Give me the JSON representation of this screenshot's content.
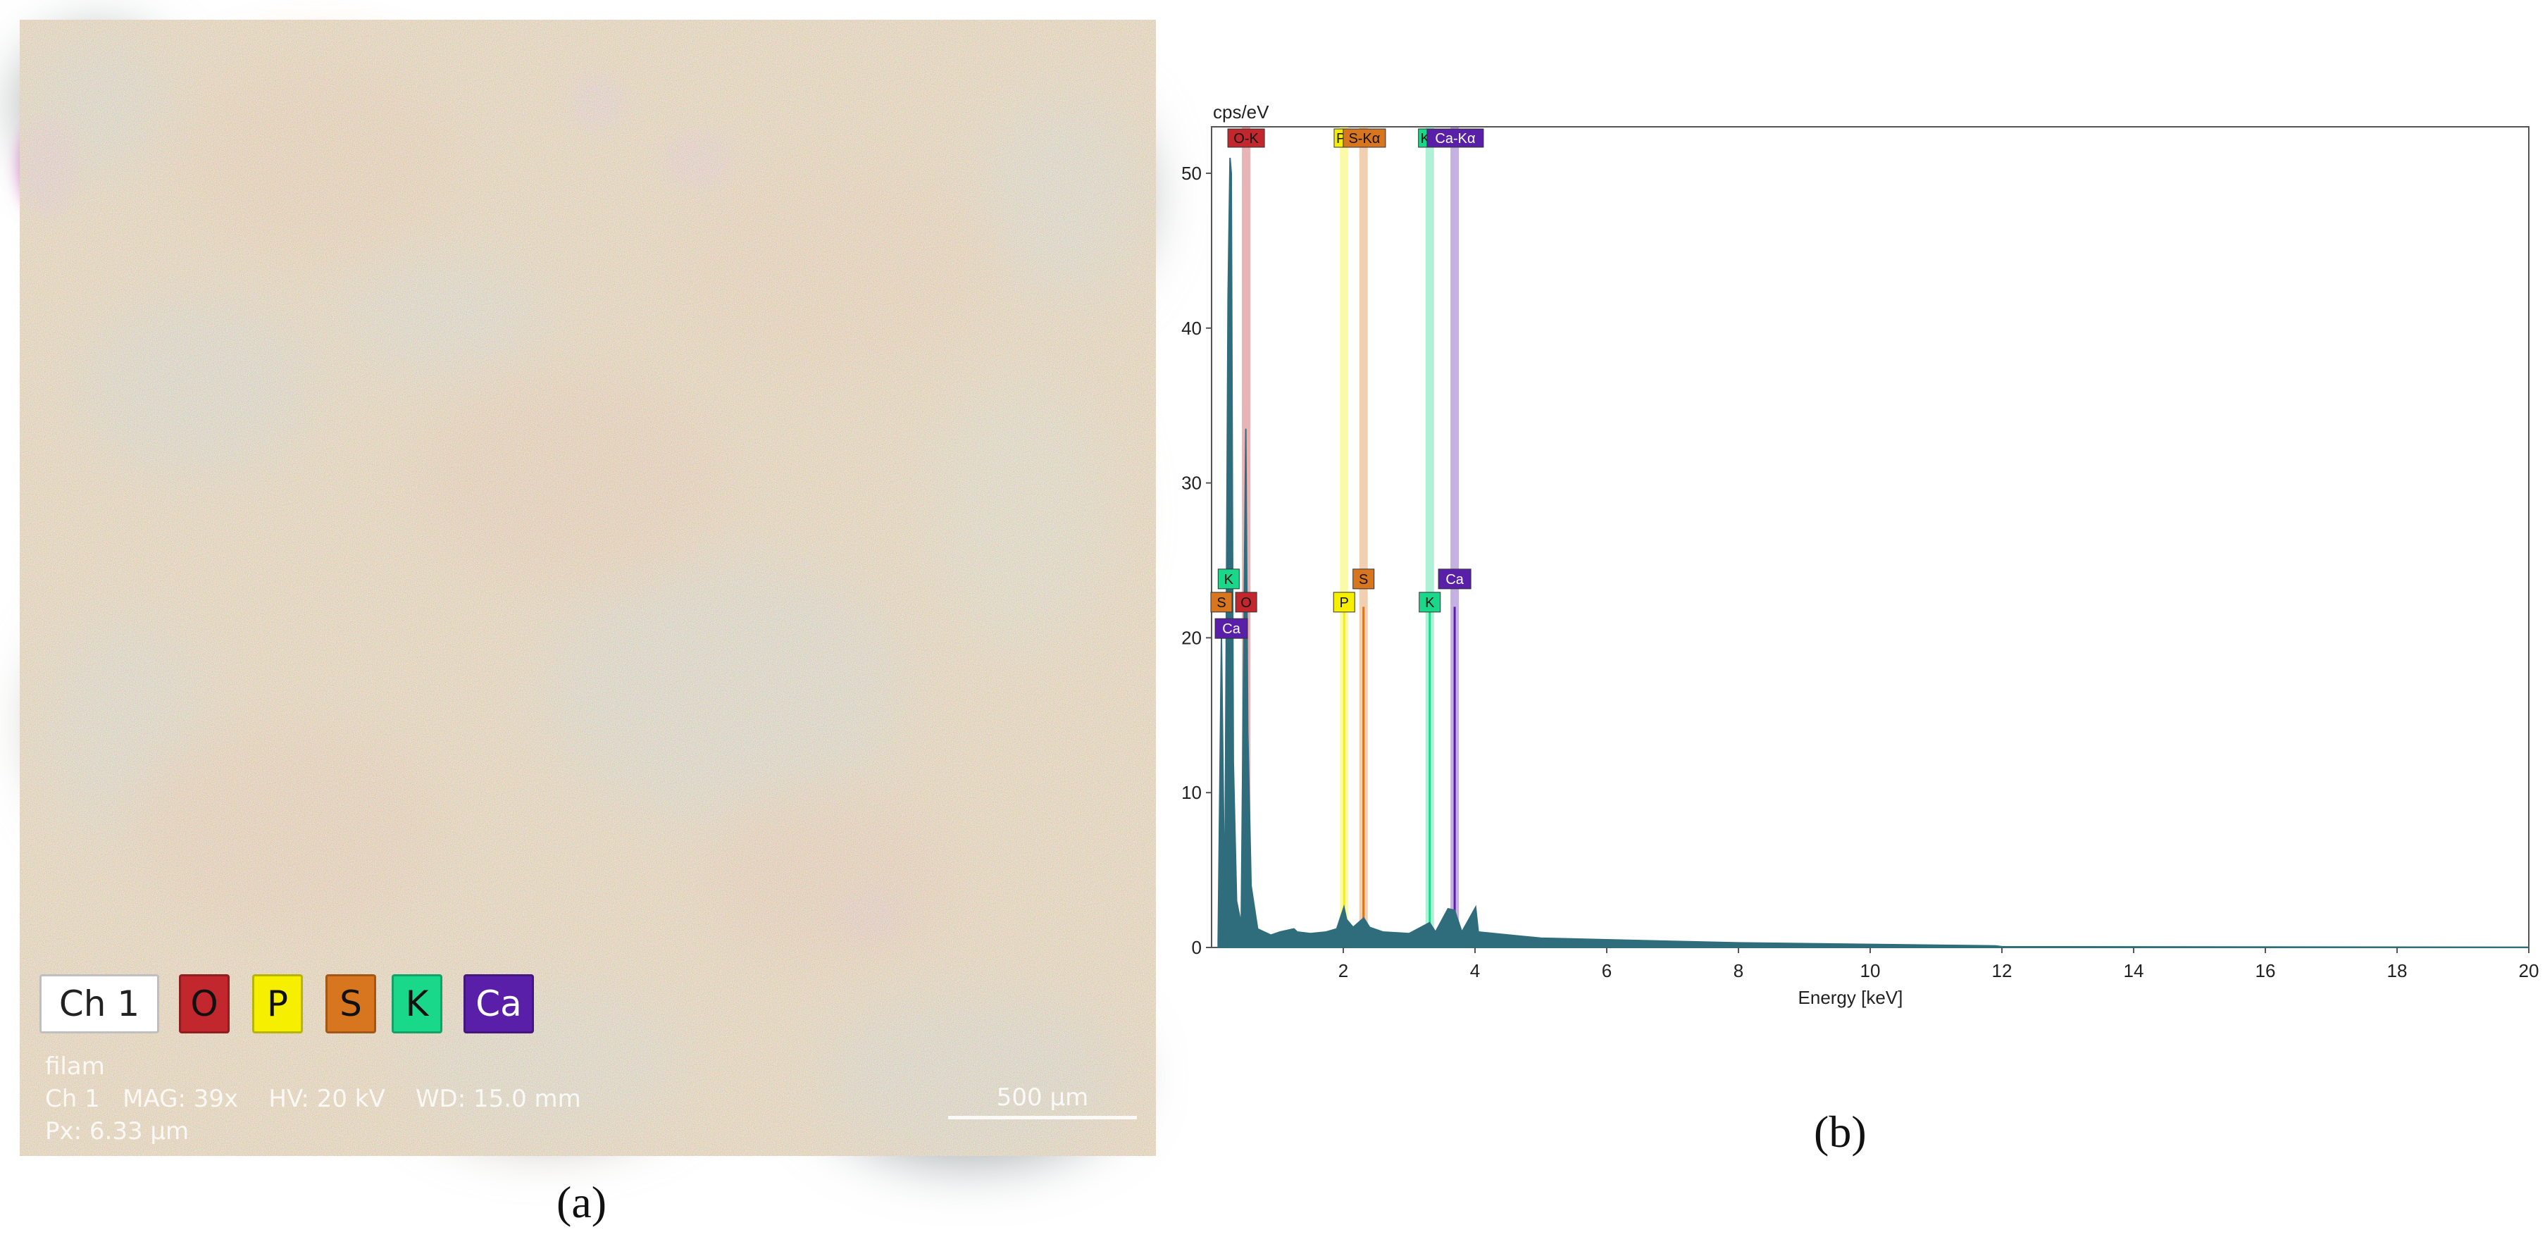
{
  "panel_a": {
    "legend": [
      {
        "label": "Ch 1",
        "color": "#ffffff",
        "text_color": "#222222"
      },
      {
        "label": "O",
        "color": "#c1272d",
        "text_color": "#111111"
      },
      {
        "label": "P",
        "color": "#f6f000",
        "text_color": "#111111"
      },
      {
        "label": "S",
        "color": "#d8751f",
        "text_color": "#111111"
      },
      {
        "label": "K",
        "color": "#19d88a",
        "text_color": "#111111"
      },
      {
        "label": "Ca",
        "color": "#5a1fa8",
        "text_color": "#ffffff"
      }
    ],
    "overlay": {
      "sample": "filam",
      "info": "Ch 1   MAG: 39x    HV: 20 kV    WD: 15.0 mm",
      "pixel": "Px: 6.33 µm",
      "scale_bar": "500 µm"
    },
    "caption": "(a)"
  },
  "panel_b": {
    "caption": "(b)"
  },
  "chart_data": {
    "type": "line",
    "ylabel": "cps/eV",
    "xlabel": "Energy [keV]",
    "xlim": [
      0,
      20
    ],
    "ylim": [
      0,
      53
    ],
    "x_ticks": [
      "2",
      "4",
      "6",
      "8",
      "10",
      "12",
      "14",
      "16",
      "18",
      "20"
    ],
    "y_ticks": [
      "0",
      "10",
      "20",
      "30",
      "40",
      "50"
    ],
    "spectrum": {
      "color": "#2f6d7d",
      "points": [
        [
          0.1,
          0.3
        ],
        [
          0.15,
          20
        ],
        [
          0.2,
          2
        ],
        [
          0.25,
          42
        ],
        [
          0.28,
          51
        ],
        [
          0.3,
          50
        ],
        [
          0.33,
          12
        ],
        [
          0.38,
          3
        ],
        [
          0.45,
          1.5
        ],
        [
          0.52,
          33.5
        ],
        [
          0.55,
          14
        ],
        [
          0.6,
          4
        ],
        [
          0.7,
          1.2
        ],
        [
          0.9,
          0.8
        ],
        [
          1.04,
          1.0
        ],
        [
          1.25,
          1.2
        ],
        [
          1.3,
          1.0
        ],
        [
          1.5,
          0.9
        ],
        [
          1.74,
          1.0
        ],
        [
          1.9,
          1.2
        ],
        [
          2.01,
          2.6
        ],
        [
          2.05,
          1.8
        ],
        [
          2.15,
          1.3
        ],
        [
          2.31,
          1.9
        ],
        [
          2.4,
          1.3
        ],
        [
          2.6,
          1.0
        ],
        [
          3.0,
          0.9
        ],
        [
          3.31,
          1.6
        ],
        [
          3.4,
          1.0
        ],
        [
          3.59,
          2.5
        ],
        [
          3.69,
          2.4
        ],
        [
          3.8,
          1.0
        ],
        [
          4.01,
          2.6
        ],
        [
          4.05,
          1.0
        ],
        [
          5,
          0.6
        ],
        [
          6,
          0.5
        ],
        [
          7,
          0.4
        ],
        [
          8,
          0.3
        ],
        [
          9,
          0.25
        ],
        [
          10,
          0.2
        ],
        [
          11,
          0.15
        ],
        [
          11.9,
          0.1
        ],
        [
          12,
          0.05
        ],
        [
          20,
          0.02
        ]
      ]
    },
    "element_lines": [
      {
        "element": "O",
        "label": "O-K",
        "energy": 0.525,
        "color": "#c1272d"
      },
      {
        "element": "P",
        "label": "P-Kα",
        "energy": 2.013,
        "color": "#f6f000"
      },
      {
        "element": "S",
        "label": "S-Kα",
        "energy": 2.307,
        "color": "#d8751f"
      },
      {
        "element": "K",
        "label": "K-Kα",
        "energy": 3.313,
        "color": "#19d88a"
      },
      {
        "element": "Ca",
        "label": "Ca-Kα",
        "energy": 3.691,
        "color": "#5a1fa8"
      }
    ],
    "top_labels": [
      "O-K",
      "P-",
      "S-Kα",
      "K-",
      "Ca-Kα"
    ],
    "markers": [
      {
        "label": "K",
        "energy": 0.26,
        "color": "#19d88a"
      },
      {
        "label": "S",
        "energy": 0.15,
        "color": "#d8751f"
      },
      {
        "label": "O",
        "energy": 0.525,
        "color": "#c1272d"
      },
      {
        "label": "Ca",
        "energy": 0.3,
        "color": "#5a1fa8"
      },
      {
        "label": "P",
        "energy": 2.013,
        "color": "#f6f000"
      },
      {
        "label": "S",
        "energy": 2.307,
        "color": "#d8751f"
      },
      {
        "label": "K",
        "energy": 3.313,
        "color": "#19d88a"
      },
      {
        "label": "Ca",
        "energy": 3.691,
        "color": "#5a1fa8"
      }
    ]
  }
}
